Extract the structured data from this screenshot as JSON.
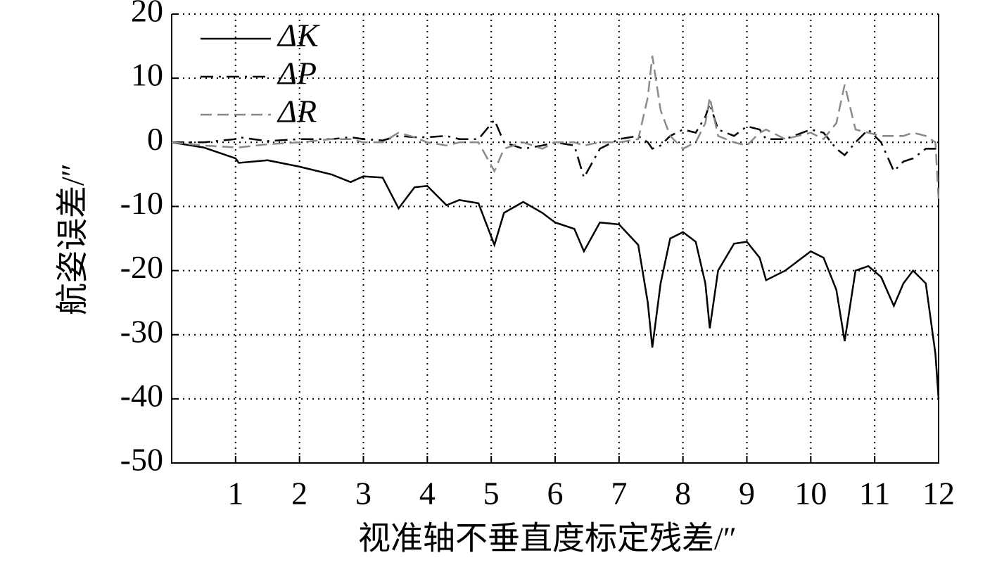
{
  "chart_data": {
    "type": "line",
    "x_label": "视准轴不垂直度标定残差/″",
    "y_label": "航姿误差/″",
    "x": [
      0,
      0.5,
      1,
      1.05,
      1.5,
      2,
      2.5,
      2.8,
      3,
      3.3,
      3.55,
      3.8,
      4,
      4.3,
      4.5,
      4.8,
      5.05,
      5.2,
      5.5,
      5.8,
      6,
      6.3,
      6.45,
      6.7,
      7,
      7.3,
      7.45,
      7.52,
      7.65,
      7.8,
      8,
      8.2,
      8.35,
      8.42,
      8.55,
      8.8,
      9,
      9.2,
      9.3,
      9.6,
      10,
      10.2,
      10.4,
      10.53,
      10.7,
      10.9,
      11.1,
      11.3,
      11.45,
      11.6,
      11.8,
      11.95,
      12
    ],
    "series": [
      {
        "name": "ΔK",
        "color": "#000000",
        "linestyle": "solid",
        "values": [
          0,
          -0.8,
          -2.5,
          -3.2,
          -2.8,
          -3.8,
          -5,
          -6.2,
          -5.3,
          -5.5,
          -10.3,
          -7,
          -6.8,
          -9.8,
          -9,
          -9.5,
          -16,
          -11,
          -9.3,
          -11,
          -12.5,
          -13.5,
          -17,
          -12.5,
          -12.8,
          -16,
          -25,
          -32,
          -22,
          -15,
          -14,
          -15.5,
          -22,
          -29,
          -20,
          -15.8,
          -15.5,
          -18,
          -21.5,
          -20,
          -17,
          -18,
          -23,
          -31,
          -20,
          -19.3,
          -21,
          -25.5,
          -22,
          -20,
          -22,
          -33,
          -40
        ]
      },
      {
        "name": "ΔP",
        "color": "#000000",
        "linestyle": "dashdot",
        "values": [
          0,
          0,
          0.5,
          0.8,
          0.2,
          0.5,
          0.5,
          0.8,
          0.5,
          0.3,
          1,
          0.8,
          0.8,
          1,
          0.5,
          0.5,
          3.5,
          0,
          -1,
          -0.5,
          0,
          -0.5,
          -5.5,
          -1,
          0.5,
          1,
          0,
          -1,
          -0.5,
          1,
          2,
          1.5,
          4,
          6,
          2,
          1,
          2.5,
          2,
          0.5,
          0.5,
          2,
          1.5,
          -1,
          -2,
          0,
          2,
          0,
          -4.5,
          -3,
          -2.5,
          -1,
          -1,
          -1
        ]
      },
      {
        "name": "ΔR",
        "color": "#8a8a8a",
        "linestyle": "dashed",
        "values": [
          0,
          -0.5,
          -0.8,
          -0.8,
          -0.3,
          0,
          0.5,
          0.5,
          0,
          0,
          1.5,
          0.8,
          0,
          -0.5,
          0,
          0,
          -4.5,
          -1,
          0,
          -1,
          0,
          0,
          -0.5,
          0,
          0,
          0.5,
          7,
          13.5,
          5,
          1,
          -1,
          0,
          3,
          7,
          1,
          0,
          -0.5,
          1.5,
          2,
          0.5,
          1.5,
          0.5,
          3,
          9,
          2,
          1.5,
          1,
          1,
          1,
          1.5,
          1,
          0,
          -9
        ]
      }
    ],
    "xlim": [
      0,
      12
    ],
    "xticks": [
      1,
      2,
      3,
      4,
      5,
      6,
      7,
      8,
      9,
      10,
      11,
      12
    ],
    "ylim": [
      -50,
      20
    ],
    "yticks": [
      -50,
      -40,
      -30,
      -20,
      -10,
      0,
      10,
      20
    ],
    "grid": true,
    "legend": "upper left"
  }
}
